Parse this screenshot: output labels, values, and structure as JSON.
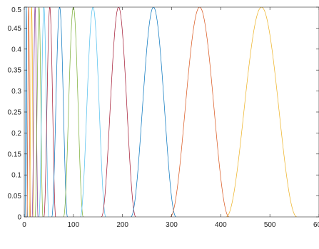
{
  "chart_data": {
    "type": "line",
    "title": "",
    "xlabel": "",
    "ylabel": "",
    "xlim": [
      0,
      600
    ],
    "ylim": [
      0,
      0.5
    ],
    "grid": false,
    "box": true,
    "x_ticks": [
      0,
      100,
      200,
      300,
      400,
      500,
      600
    ],
    "x_tick_labels": [
      "0",
      "100",
      "200",
      "300",
      "400",
      "500",
      "600"
    ],
    "y_ticks": [
      0,
      0.05,
      0.1,
      0.15,
      0.2,
      0.25,
      0.3,
      0.35,
      0.4,
      0.45,
      0.5
    ],
    "y_tick_labels": [
      "0",
      "0.05",
      "0.1",
      "0.15",
      "0.2",
      "0.25",
      "0.3",
      "0.35",
      "0.4",
      "0.45",
      "0.5"
    ],
    "series": [
      {
        "shape": "sin2-bump",
        "peak_x": 4,
        "half_width": 2.5,
        "peak_y": 0.5,
        "color": "#0072BD"
      },
      {
        "shape": "sin2-bump",
        "peak_x": 9,
        "half_width": 3.5,
        "peak_y": 0.5,
        "color": "#D95319"
      },
      {
        "shape": "sin2-bump",
        "peak_x": 15,
        "half_width": 4.5,
        "peak_y": 0.5,
        "color": "#EDB120"
      },
      {
        "shape": "sin2-bump",
        "peak_x": 22,
        "half_width": 6,
        "peak_y": 0.5,
        "color": "#7E2F8E"
      },
      {
        "shape": "sin2-bump",
        "peak_x": 30,
        "half_width": 8,
        "peak_y": 0.5,
        "color": "#77AC30"
      },
      {
        "shape": "sin2-bump",
        "peak_x": 40,
        "half_width": 10,
        "peak_y": 0.5,
        "color": "#4DBEEE"
      },
      {
        "shape": "sin2-bump",
        "peak_x": 52,
        "half_width": 12,
        "peak_y": 0.5,
        "color": "#A2142F"
      },
      {
        "shape": "sin2-bump",
        "peak_x": 72,
        "half_width": 16,
        "peak_y": 0.5,
        "color": "#0072BD"
      },
      {
        "shape": "sin2-bump",
        "peak_x": 100,
        "half_width": 20,
        "peak_y": 0.5,
        "color": "#77AC30"
      },
      {
        "shape": "sin2-bump",
        "peak_x": 140,
        "half_width": 26,
        "peak_y": 0.5,
        "color": "#4DBEEE"
      },
      {
        "shape": "sin2-bump",
        "peak_x": 192,
        "half_width": 35,
        "peak_y": 0.5,
        "color": "#A2142F"
      },
      {
        "shape": "sin2-bump",
        "peak_x": 263,
        "half_width": 46,
        "peak_y": 0.5,
        "color": "#0072BD"
      },
      {
        "shape": "sin2-bump",
        "peak_x": 357,
        "half_width": 60,
        "peak_y": 0.5,
        "color": "#D95319"
      },
      {
        "shape": "sin2-bump",
        "peak_x": 483,
        "half_width": 72,
        "peak_y": 0.5,
        "color": "#EDB120"
      }
    ]
  }
}
